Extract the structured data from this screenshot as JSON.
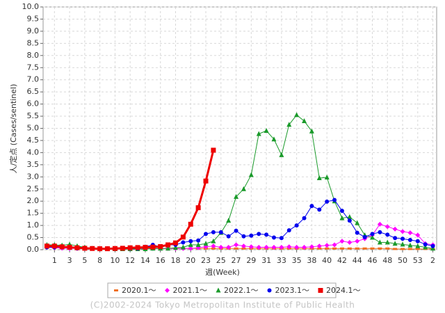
{
  "chart_data": {
    "type": "line",
    "ylabel": "人/定点 (Cases/sentinel)",
    "xlabel": "週(Week)",
    "footer": "(C)2002-2024 Tokyo Metropolitan Institute of Public Health",
    "categories": [
      null,
      "1",
      null,
      "3",
      null,
      "5",
      null,
      "8",
      null,
      "10",
      null,
      "12",
      null,
      "14",
      null,
      "16",
      null,
      "18",
      null,
      "20",
      null,
      "23",
      null,
      "25",
      null,
      "27",
      null,
      "29",
      null,
      "31",
      null,
      "33",
      null,
      "35",
      null,
      "38",
      null,
      "40",
      null,
      "42",
      null,
      "44",
      null,
      "46",
      null,
      "48",
      null,
      "50",
      null,
      "53",
      null,
      "2"
    ],
    "ylim": [
      0,
      10
    ],
    "yticks": [
      {
        "value": 0,
        "label": "0.0"
      },
      {
        "value": 0.5,
        "label": "0.5"
      },
      {
        "value": 1,
        "label": "1.0"
      },
      {
        "value": 1.5,
        "label": "1.5"
      },
      {
        "value": 2,
        "label": "2.0"
      },
      {
        "value": 2.5,
        "label": "2.5"
      },
      {
        "value": 3,
        "label": "3.0"
      },
      {
        "value": 3.5,
        "label": "3.5"
      },
      {
        "value": 4,
        "label": "4.0"
      },
      {
        "value": 4.5,
        "label": "4.5"
      },
      {
        "value": 5,
        "label": "5.0"
      },
      {
        "value": 5.5,
        "label": "5.5"
      },
      {
        "value": 6,
        "label": "6.0"
      },
      {
        "value": 6.5,
        "label": "6.5"
      },
      {
        "value": 7,
        "label": "7.0"
      },
      {
        "value": 7.5,
        "label": "7.5"
      },
      {
        "value": 8,
        "label": "8.0"
      },
      {
        "value": 8.5,
        "label": "8.5"
      },
      {
        "value": 9,
        "label": "9.0"
      },
      {
        "value": 9.5,
        "label": "9.5"
      },
      {
        "value": 10,
        "label": "10.0"
      }
    ],
    "grid": true,
    "legend": "bottom",
    "series": [
      {
        "name": "2020.1～",
        "color": "#f07020",
        "marker": "dash",
        "line_width": 1,
        "values": [
          0.1,
          0.12,
          0.1,
          0.12,
          0.1,
          0.08,
          0.05,
          0.05,
          0.05,
          0.05,
          0.05,
          0.05,
          0.05,
          0.05,
          0.05,
          0.05,
          0.05,
          0.05,
          0.05,
          0.05,
          0.05,
          0.05,
          0.05,
          0.05,
          0.05,
          0.05,
          0.05,
          0.05,
          0.05,
          0.05,
          0.05,
          0.05,
          0.05,
          0.05,
          0.05,
          0.05,
          0.05,
          0.05,
          0.05,
          0.05,
          0.05,
          0.05,
          0.05,
          0.05,
          0.05,
          0.05,
          0.03,
          0.03,
          0.03,
          0.03,
          0.03,
          0.03
        ]
      },
      {
        "name": "2021.1～",
        "color": "#ff00ff",
        "marker": "diamond",
        "line_width": 1,
        "values": [
          0.1,
          0.08,
          0.06,
          0.05,
          0.05,
          0.05,
          0.05,
          0.05,
          0.05,
          0.05,
          0.05,
          0.05,
          0.05,
          0.05,
          0.05,
          0.05,
          0.05,
          0.05,
          0.05,
          0.05,
          0.08,
          0.12,
          0.15,
          0.1,
          0.1,
          0.2,
          0.15,
          0.12,
          0.1,
          0.1,
          0.1,
          0.1,
          0.12,
          0.1,
          0.1,
          0.12,
          0.15,
          0.18,
          0.2,
          0.35,
          0.3,
          0.35,
          0.45,
          0.6,
          1.05,
          0.95,
          0.85,
          0.75,
          0.7,
          0.6,
          0.25,
          0.2
        ]
      },
      {
        "name": "2022.1～",
        "color": "#1a9a2a",
        "marker": "triangle",
        "line_width": 1,
        "values": [
          0.2,
          0.2,
          0.18,
          0.22,
          0.15,
          0.1,
          0.05,
          0.03,
          0.03,
          0.03,
          0.03,
          0.03,
          0.03,
          0.03,
          0.05,
          0.05,
          0.05,
          0.08,
          0.1,
          0.2,
          0.2,
          0.25,
          0.35,
          0.7,
          1.2,
          2.18,
          2.5,
          3.08,
          4.77,
          4.9,
          4.55,
          3.9,
          5.15,
          5.55,
          5.3,
          4.88,
          2.95,
          2.98,
          2.0,
          1.3,
          1.35,
          1.1,
          0.6,
          0.5,
          0.3,
          0.3,
          0.25,
          0.22,
          0.18,
          0.15,
          0.1,
          0.05
        ]
      },
      {
        "name": "2023.1～",
        "color": "#0000ee",
        "marker": "circle",
        "line_width": 1,
        "values": [
          0.1,
          0.1,
          0.1,
          0.1,
          0.05,
          0.05,
          0.05,
          0.05,
          0.05,
          0.05,
          0.05,
          0.05,
          0.05,
          0.12,
          0.2,
          0.12,
          0.2,
          0.2,
          0.3,
          0.35,
          0.38,
          0.65,
          0.72,
          0.72,
          0.55,
          0.78,
          0.55,
          0.58,
          0.65,
          0.62,
          0.5,
          0.48,
          0.8,
          1.0,
          1.3,
          1.8,
          1.65,
          1.98,
          2.05,
          1.6,
          1.2,
          0.7,
          0.52,
          0.65,
          0.72,
          0.62,
          0.48,
          0.45,
          0.4,
          0.35,
          0.22,
          0.15
        ]
      },
      {
        "name": "2024.1～",
        "color": "#ee0000",
        "marker": "square",
        "line_width": 3,
        "values": [
          0.15,
          0.15,
          0.12,
          0.1,
          0.08,
          0.06,
          0.05,
          0.04,
          0.04,
          0.05,
          0.06,
          0.08,
          0.09,
          0.1,
          0.11,
          0.13,
          0.2,
          0.28,
          0.52,
          1.05,
          1.73,
          2.83,
          4.1,
          null,
          null,
          null,
          null,
          null,
          null,
          null,
          null,
          null,
          null,
          null,
          null,
          null,
          null,
          null,
          null,
          null,
          null,
          null,
          null,
          null,
          null,
          null,
          null,
          null,
          null,
          null,
          null,
          null
        ]
      }
    ]
  }
}
